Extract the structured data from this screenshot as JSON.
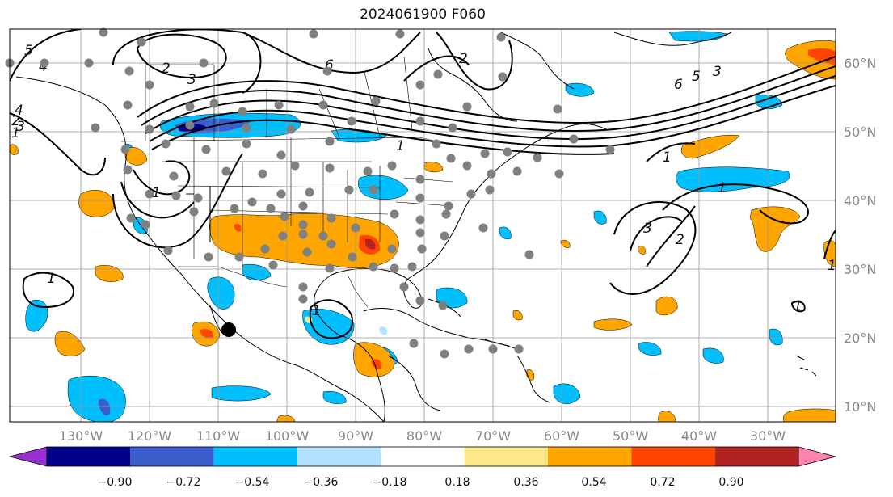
{
  "title": "2024061900 F060",
  "lon_labels": [
    "130°W",
    "120°W",
    "110°W",
    "100°W",
    "90°W",
    "80°W",
    "70°W",
    "60°W",
    "50°W",
    "40°W",
    "30°W"
  ],
  "lat_labels": [
    "60°N",
    "50°N",
    "40°N",
    "30°N",
    "20°N",
    "10°N"
  ],
  "colorbar": {
    "ticks": [
      "−0.90",
      "−0.72",
      "−0.54",
      "−0.36",
      "−0.18",
      "0.18",
      "0.36",
      "0.54",
      "0.72",
      "0.90"
    ],
    "colors": [
      "#9b30d0",
      "#00008b",
      "#3a5fcd",
      "#00bfff",
      "#b0e2ff",
      "#ffffff",
      "#ffe88a",
      "#ffa500",
      "#ff4500",
      "#b22222",
      "#ff85b0"
    ]
  },
  "contour_labels": [
    "5",
    "4",
    "2",
    "3",
    "6",
    "6",
    "5",
    "4",
    "3",
    "2",
    "1",
    "1",
    "1",
    "1",
    "2",
    "3",
    "1",
    "1",
    "1",
    "1",
    "1",
    "2",
    "3"
  ],
  "storm_marker": "tropical-cyclone-position"
}
